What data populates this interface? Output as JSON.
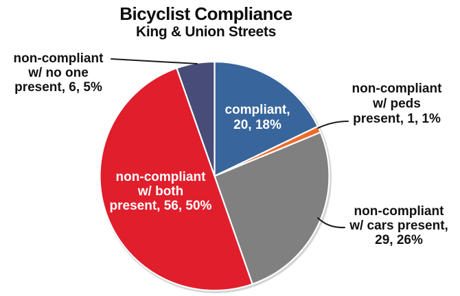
{
  "title": "Bicyclist Compliance",
  "subtitle": "King & Union Streets",
  "chart_data": {
    "type": "pie",
    "title": "Bicyclist Compliance",
    "subtitle": "King & Union Streets",
    "total": 112,
    "start_angle_deg": 0,
    "direction": "clockwise",
    "legend": "none",
    "slices": [
      {
        "name": "compliant",
        "value": 20,
        "percent": "18%",
        "color": "#38659B",
        "label_text": "compliant, 20, 18%",
        "label_lines": [
          "compliant,",
          "20, 18%"
        ],
        "label_color": "#ffffff",
        "label_position": "inside"
      },
      {
        "name": "non-compliant w/ peds present",
        "value": 1,
        "percent": "1%",
        "color": "#EE6A28",
        "label_text": "non-compliant w/ peds present, 1, 1%",
        "label_lines": [
          "non-compliant",
          "w/ peds",
          "present, 1, 1%"
        ],
        "label_color": "#111111",
        "label_position": "outside-right"
      },
      {
        "name": "non-compliant w/ cars present",
        "value": 29,
        "percent": "26%",
        "color": "#808080",
        "label_text": "non-compliant w/ cars present, 29, 26%",
        "label_lines": [
          "non-compliant",
          "w/ cars present,",
          "29, 26%"
        ],
        "label_color": "#111111",
        "label_position": "outside-right"
      },
      {
        "name": "non-compliant w/ both present",
        "value": 56,
        "percent": "50%",
        "color": "#E01E2C",
        "label_text": "non-compliant w/ both present, 56, 50%",
        "label_lines": [
          "non-compliant",
          "w/ both",
          "present, 56, 50%"
        ],
        "label_color": "#ffffff",
        "label_position": "inside"
      },
      {
        "name": "non-compliant w/ no one present",
        "value": 6,
        "percent": "5%",
        "color": "#474D78",
        "label_text": "non-compliant w/ no one present, 6, 5%",
        "label_lines": [
          "non-compliant",
          "w/ no one",
          "present, 6, 5%"
        ],
        "label_color": "#111111",
        "label_position": "outside-left"
      }
    ],
    "style": {
      "slice_separator_color": "#ffffff",
      "leader_line_color": "#1a1a1a",
      "shadow_ring_color": "#d4d4d4",
      "background": "#ffffff"
    }
  }
}
